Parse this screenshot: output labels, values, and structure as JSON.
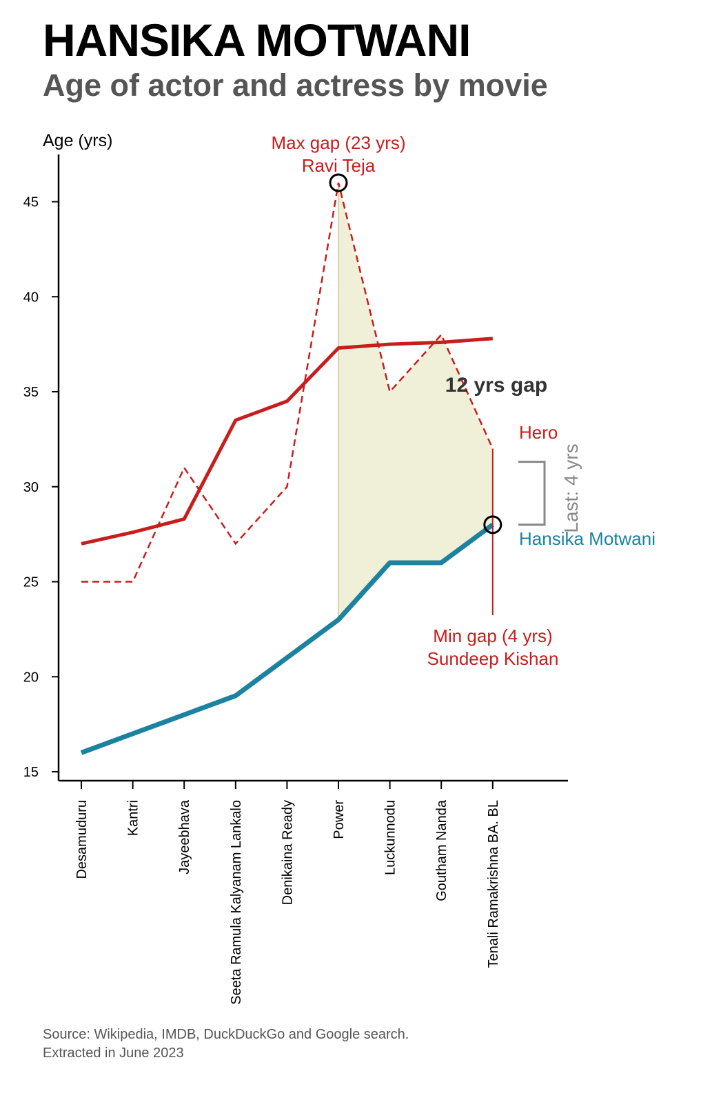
{
  "header": {
    "title": "HANSIKA MOTWANI",
    "subtitle": "Age of actor and actress by movie"
  },
  "footer": {
    "source_line1": "Source: Wikipedia, IMDB, DuckDuckGo and Google search.",
    "source_line2": "Extracted in June 2023"
  },
  "colors": {
    "hero": "#c81d1d",
    "actress": "#1b82a0",
    "gap_fill": "#f0f0d8",
    "bracket": "#888888",
    "marker": "#000000"
  },
  "chart_data": {
    "type": "line",
    "ylabel": "Age (yrs)",
    "ylim": [
      15,
      47
    ],
    "yticks": [
      15,
      20,
      25,
      30,
      35,
      40,
      45
    ],
    "categories": [
      "Desamuduru",
      "Kantri",
      "Jayeebhava",
      "Seeta Ramula Kalyanam Lankalo",
      "Denikaina Ready",
      "Power",
      "Luckunnodu",
      "Goutham Nanda",
      "Tenali Ramakrishna BA. BL"
    ],
    "series": [
      {
        "name": "Hero",
        "style": "dashed",
        "values": [
          25,
          25,
          31,
          27,
          30,
          46,
          35,
          38,
          32
        ]
      },
      {
        "name": "Hero",
        "style": "trend",
        "values": [
          27,
          27.6,
          28.3,
          33.5,
          34.5,
          37.3,
          37.5,
          37.6,
          37.8
        ]
      },
      {
        "name": "Hansika Motwani",
        "style": "solid",
        "values": [
          16,
          17,
          18,
          19,
          21,
          23,
          26,
          26,
          28
        ]
      }
    ],
    "gap_band": {
      "from_category": "Power",
      "to_category": "Tenali Ramakrishna BA. BL"
    },
    "annotations": {
      "max_gap_line1": "Max gap (23 yrs)",
      "max_gap_line2": "Ravi Teja",
      "max_gap_category": "Power",
      "max_gap_value": 46,
      "min_gap_line1": "Min gap (4 yrs)",
      "min_gap_line2": "Sundeep Kishan",
      "min_gap_category": "Tenali Ramakrishna BA. BL",
      "min_gap_value": 28,
      "gap_label": "12 yrs gap",
      "last_label": "Last: 4 yrs",
      "hero_label": "Hero",
      "actress_label": "Hansika Motwani"
    }
  }
}
